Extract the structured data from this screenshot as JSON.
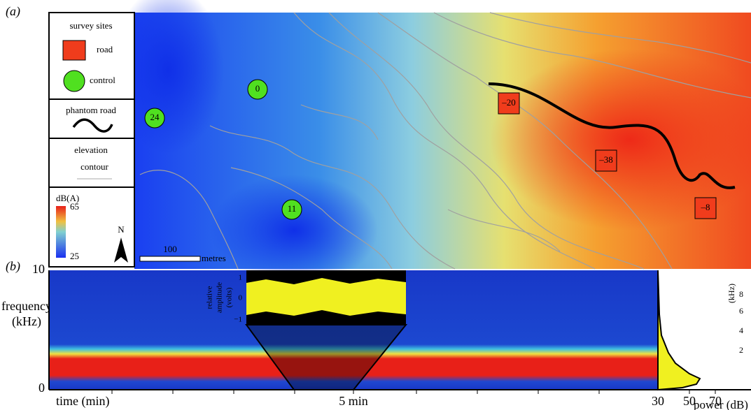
{
  "panel_a": {
    "label": "(a)",
    "legend": {
      "survey_sites": "survey sites",
      "road": "road",
      "control": "control",
      "phantom_road": "phantom road",
      "elevation": "elevation",
      "contour": "contour",
      "db_label": "dB(A)",
      "db_max": "65",
      "db_min": "25",
      "north": "N"
    },
    "scale": {
      "value": "100",
      "unit": "metres"
    },
    "road_sites": [
      "–20",
      "–38",
      "–8"
    ],
    "control_sites": [
      "0",
      "24",
      "11"
    ]
  },
  "panel_b": {
    "label": "(b)",
    "y_label": "frequency",
    "y_unit": "(kHz)",
    "y_ticks": [
      "10",
      "0"
    ],
    "x_label": "time (min)",
    "x_mid": "5 min",
    "inset_y_label": [
      "relative",
      "amplitude",
      "(volts)"
    ],
    "inset_ticks": [
      "1",
      "0",
      "−1"
    ],
    "power_ticks": [
      "30",
      "50",
      "70"
    ],
    "power_label": "power (dB)",
    "khz_label": "(kHz)",
    "khz_ticks": [
      "8",
      "6",
      "4",
      "2"
    ]
  }
}
